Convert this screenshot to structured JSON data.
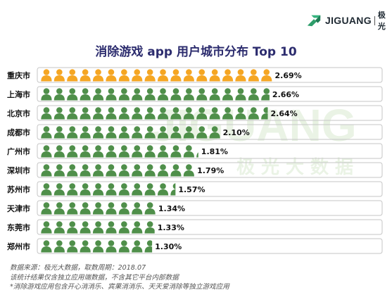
{
  "brand": {
    "name": "JIGUANG",
    "name_cn": "极光",
    "watermark_en": "JIGUANG",
    "watermark_cn": "极光大数据"
  },
  "colors": {
    "gold": "#f5a623",
    "green": "#4f8f4a",
    "row_border": "#c6c6c6",
    "title": "#2c2c6e",
    "watermark": "#e7f1e1"
  },
  "chart_data": {
    "type": "bar",
    "title": "消除游戏 app 用户城市分布 Top 10",
    "categories": [
      "重庆市",
      "上海市",
      "北京市",
      "成都市",
      "广州市",
      "深圳市",
      "苏州市",
      "天津市",
      "东莞市",
      "郑州市"
    ],
    "values": [
      2.69,
      2.66,
      2.64,
      2.1,
      1.81,
      1.79,
      1.57,
      1.34,
      1.33,
      1.3
    ],
    "value_labels": [
      "2.69%",
      "2.66%",
      "2.64%",
      "2.10%",
      "1.81%",
      "1.79%",
      "1.57%",
      "1.34%",
      "1.33%",
      "1.30%"
    ],
    "unit": "%",
    "highlight_index": 0,
    "mark": "person-icon"
  },
  "notes": [
    "数据来源：极光大数据，取数周期：2018.07",
    "该统计结果仅含独立应用端数据，不含其它平台内部数据",
    "*消除游戏应用包含开心消消乐、宾果消消乐、天天爱消除等独立游戏应用"
  ]
}
